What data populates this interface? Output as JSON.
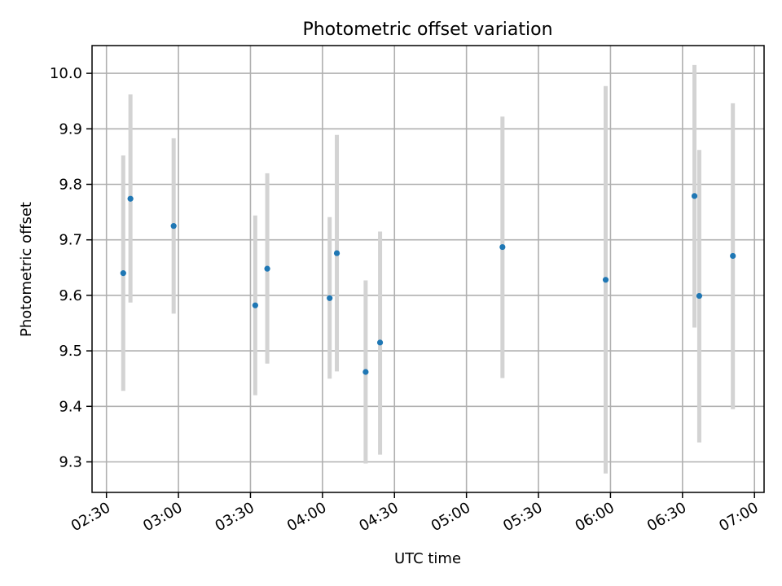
{
  "chart_data": {
    "type": "scatter",
    "title": "Photometric offset variation",
    "xlabel": "UTC time",
    "ylabel": "Photometric offset",
    "x_format": "HH:MM",
    "xlim": [
      "02:24",
      "07:04"
    ],
    "ylim": [
      9.245,
      10.05
    ],
    "grid": true,
    "x_ticks": [
      "02:30",
      "03:00",
      "03:30",
      "04:00",
      "04:30",
      "05:00",
      "05:30",
      "06:00",
      "06:30",
      "07:00"
    ],
    "y_ticks": [
      9.3,
      9.4,
      9.5,
      9.6,
      9.7,
      9.8,
      9.9,
      10.0
    ],
    "y_tick_labels": [
      "9.3",
      "9.4",
      "9.5",
      "9.6",
      "9.7",
      "9.8",
      "9.9",
      "10.0"
    ],
    "marker_color": "#1f77b4",
    "errorbar_color": "#d3d3d3",
    "points": [
      {
        "x": "02:37",
        "y": 9.64,
        "ymin": 9.428,
        "ymax": 9.852
      },
      {
        "x": "02:40",
        "y": 9.774,
        "ymin": 9.587,
        "ymax": 9.962
      },
      {
        "x": "02:58",
        "y": 9.725,
        "ymin": 9.567,
        "ymax": 9.883
      },
      {
        "x": "03:32",
        "y": 9.582,
        "ymin": 9.42,
        "ymax": 9.744
      },
      {
        "x": "03:37",
        "y": 9.648,
        "ymin": 9.477,
        "ymax": 9.82
      },
      {
        "x": "04:03",
        "y": 9.595,
        "ymin": 9.45,
        "ymax": 9.741
      },
      {
        "x": "04:06",
        "y": 9.676,
        "ymin": 9.463,
        "ymax": 9.889
      },
      {
        "x": "04:18",
        "y": 9.462,
        "ymin": 9.297,
        "ymax": 9.627
      },
      {
        "x": "04:24",
        "y": 9.515,
        "ymin": 9.313,
        "ymax": 9.715
      },
      {
        "x": "05:15",
        "y": 9.687,
        "ymin": 9.451,
        "ymax": 9.922
      },
      {
        "x": "05:58",
        "y": 9.628,
        "ymin": 9.279,
        "ymax": 9.977
      },
      {
        "x": "06:35",
        "y": 9.779,
        "ymin": 9.542,
        "ymax": 10.015
      },
      {
        "x": "06:37",
        "y": 9.599,
        "ymin": 9.335,
        "ymax": 9.862
      },
      {
        "x": "06:51",
        "y": 9.671,
        "ymin": 9.395,
        "ymax": 9.946
      }
    ]
  }
}
